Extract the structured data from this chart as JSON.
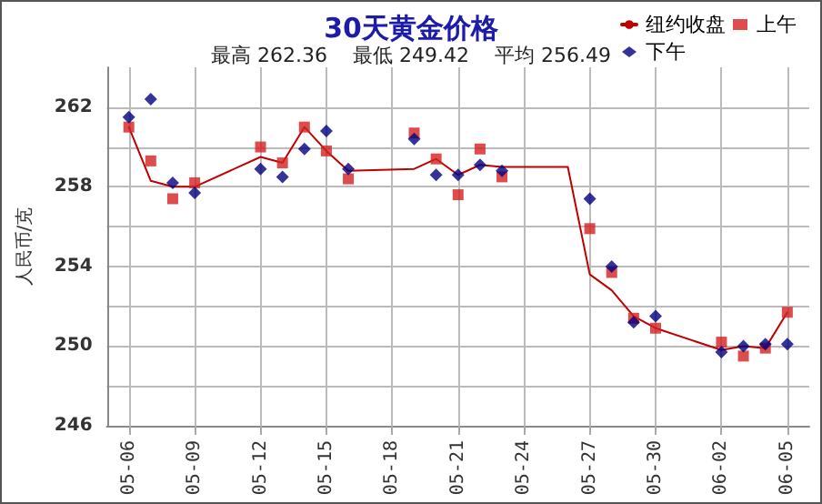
{
  "chart_data": {
    "type": "line",
    "title": "30天黄金价格",
    "subtitle": "最高 262.36    最低 249.42    平均 256.49",
    "ylabel": "人民币/克",
    "xlim": [
      "--05-05",
      "--06-06"
    ],
    "xticks": [
      {
        "value": "--05-06",
        "label": "05-06"
      },
      {
        "value": "--05-09",
        "label": "05-09"
      },
      {
        "value": "--05-12",
        "label": "05-12"
      },
      {
        "value": "--05-15",
        "label": "05-15"
      },
      {
        "value": "--05-18",
        "label": "05-18"
      },
      {
        "value": "--05-21",
        "label": "05-21"
      },
      {
        "value": "--05-24",
        "label": "05-24"
      },
      {
        "value": "--05-27",
        "label": "05-27"
      },
      {
        "value": "--05-30",
        "label": "05-30"
      },
      {
        "value": "--06-02",
        "label": "06-02"
      },
      {
        "value": "--06-05",
        "label": "06-05"
      }
    ],
    "ylim": [
      246,
      264
    ],
    "yticks": [
      246,
      {
        "value": 248,
        "label": null
      },
      250,
      {
        "value": 252,
        "label": null
      },
      254,
      {
        "value": 256,
        "label": null
      },
      258,
      {
        "value": 260,
        "label": null
      },
      262
    ],
    "grid": true,
    "legend": "top right",
    "series": [
      {
        "name": "纽约收盘",
        "marker": "none",
        "line_style": "solid",
        "color": "#c00000",
        "x": [
          "--05-06",
          "--05-07",
          "--05-08",
          "--05-09",
          "--05-12",
          "--05-13",
          "--05-14",
          "--05-15",
          "--05-16",
          "--05-19",
          "--05-20",
          "--05-21",
          "--05-22",
          "--05-23",
          "--05-26",
          "--05-27",
          "--05-28",
          "--05-29",
          "--05-30",
          "--06-02",
          "--06-03",
          "--06-04",
          "--06-05"
        ],
        "values": [
          261.0,
          258.3,
          258.0,
          258.0,
          259.5,
          259.2,
          261.0,
          259.8,
          258.8,
          258.9,
          259.4,
          258.6,
          259.1,
          259.0,
          259.0,
          253.6,
          252.8,
          251.5,
          250.9,
          249.8,
          250.0,
          249.9,
          251.7
        ]
      },
      {
        "name": "上午",
        "type": "scatter",
        "marker": "square",
        "color": "#d42020",
        "x": [
          "--05-06",
          "--05-07",
          "--05-08",
          "--05-09",
          "--05-12",
          "--05-13",
          "--05-14",
          "--05-15",
          "--05-16",
          "--05-19",
          "--05-20",
          "--05-21",
          "--05-22",
          "--05-23",
          "--05-27",
          "--05-28",
          "--05-29",
          "--05-30",
          "--06-02",
          "--06-03",
          "--06-04",
          "--06-05"
        ],
        "values": [
          261.0,
          259.3,
          257.4,
          258.2,
          260.0,
          259.2,
          261.0,
          259.8,
          258.4,
          260.7,
          259.4,
          257.6,
          259.9,
          258.5,
          255.9,
          253.7,
          251.4,
          250.9,
          250.2,
          249.5,
          249.9,
          251.7
        ]
      },
      {
        "name": "下午",
        "type": "scatter",
        "marker": "diamond",
        "color": "#000080",
        "x": [
          "--05-06",
          "--05-07",
          "--05-08",
          "--05-09",
          "--05-12",
          "--05-13",
          "--05-14",
          "--05-15",
          "--05-16",
          "--05-19",
          "--05-20",
          "--05-21",
          "--05-22",
          "--05-23",
          "--05-27",
          "--05-28",
          "--05-29",
          "--05-30",
          "--06-02",
          "--06-03",
          "--06-04",
          "--06-05"
        ],
        "values": [
          261.5,
          262.4,
          258.2,
          257.7,
          258.9,
          258.5,
          259.9,
          260.8,
          258.9,
          260.4,
          258.6,
          258.6,
          259.1,
          258.8,
          257.4,
          254.0,
          251.2,
          251.5,
          249.7,
          250.0,
          250.1,
          250.1
        ]
      }
    ]
  }
}
